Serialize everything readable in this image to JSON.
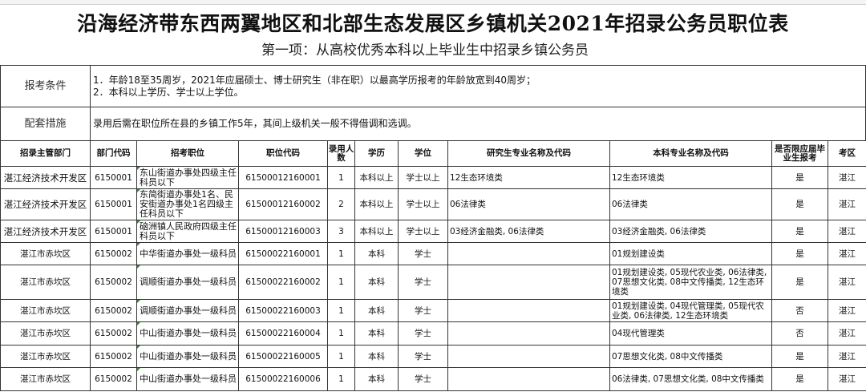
{
  "title": "沿海经济带东西两翼地区和北部生态发展区乡镇机关2021年招录公务员职位表",
  "subtitle": "第一项：从高校优秀本科以上毕业生中招录乡镇公务员",
  "notes": [
    {
      "label": "报考条件",
      "lines": [
        "1．年龄18至35周岁，2021年应届硕士、博士研究生（非在职）以最高学历报考的年龄放宽到40周岁；",
        "2．本科以上学历、学士以上学位。"
      ]
    },
    {
      "label": "配套措施",
      "lines": [
        "录用后需在职位所在县的乡镇工作5年，其间上级机关一般不得借调和选调。"
      ]
    }
  ],
  "headers": [
    "招录主管部门",
    "部门代码",
    "招考职位",
    "职位代码",
    "录用人数",
    "学历",
    "学位",
    "研究生专业名称及代码",
    "本科专业名称及代码",
    "是否限应届毕业生报考",
    "考区"
  ],
  "rows": [
    [
      "湛江经济技术开发区",
      "6150001",
      "东山街道办事处四级主任科员以下",
      "61500012160001",
      "1",
      "本科以上",
      "学士以上",
      "12生态环境类",
      "12生态环境类",
      "是",
      "湛江"
    ],
    [
      "湛江经济技术开发区",
      "6150001",
      "东简街道办事处1名、民安街道办事处1名四级主任科员以下",
      "61500012160002",
      "2",
      "本科以上",
      "学士以上",
      "06法律类",
      "06法律类",
      "是",
      "湛江"
    ],
    [
      "湛江经济技术开发区",
      "6150001",
      "硇洲镇人民政府四级主任科员以下",
      "61500012160003",
      "3",
      "本科以上",
      "学士以上",
      "03经济金融类, 06法律类",
      "03经济金融类, 06法律类",
      "是",
      "湛江"
    ],
    [
      "湛江市赤坎区",
      "6150002",
      "中华街道办事处一级科员",
      "61500022160001",
      "1",
      "本科",
      "学士",
      "",
      "01规划建设类",
      "是",
      "湛江"
    ],
    [
      "湛江市赤坎区",
      "6150002",
      "调顺街道办事处一级科员",
      "61500022160002",
      "1",
      "本科",
      "学士",
      "",
      "01规划建设类, 05现代农业类, 06法律类, 07思想文化类, 08中文传播类, 12生态环境类",
      "是",
      "湛江"
    ],
    [
      "湛江市赤坎区",
      "6150002",
      "调顺街道办事处一级科员",
      "61500022160003",
      "1",
      "本科",
      "学士",
      "",
      "01规划建设类, 04现代管理类, 05现代农业类, 06法律类, 12生态环境类",
      "否",
      "湛江"
    ],
    [
      "湛江市赤坎区",
      "6150002",
      "中山街道办事处一级科员",
      "61500022160004",
      "1",
      "本科",
      "学士",
      "",
      "04现代管理类",
      "否",
      "湛江"
    ],
    [
      "湛江市赤坎区",
      "6150002",
      "中山街道办事处一级科员",
      "61500022160005",
      "1",
      "本科",
      "学士",
      "",
      "07思想文化类, 08中文传播类",
      "是",
      "湛江"
    ],
    [
      "湛江市赤坎区",
      "6150002",
      "中山街道办事处一级科员",
      "61500022160006",
      "1",
      "本科",
      "学士",
      "",
      "06法律类, 07思想文化类, 08中文传播类",
      "是",
      "湛江"
    ]
  ]
}
